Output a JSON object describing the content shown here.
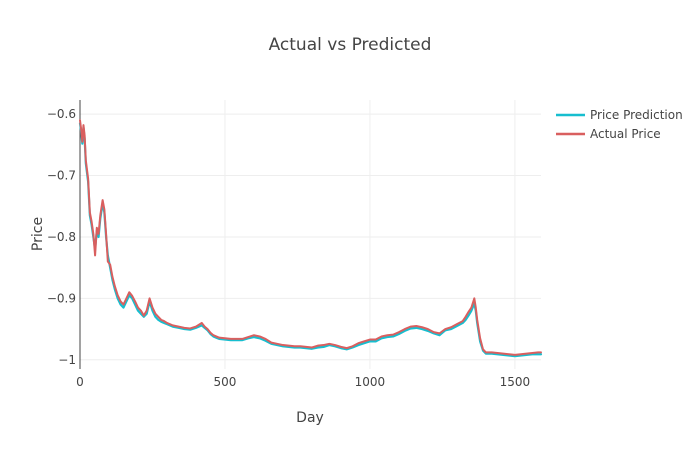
{
  "chart_data": {
    "type": "line",
    "title": "Actual vs Predicted",
    "xlabel": "Day",
    "ylabel": "Price",
    "xlim": [
      0,
      1590
    ],
    "ylim": [
      -1.015,
      -0.577
    ],
    "x_ticks": [
      0,
      500,
      1000,
      1500
    ],
    "y_ticks": [
      -1,
      -0.9,
      -0.8,
      -0.7,
      -0.6
    ],
    "x_tick_labels": [
      "0",
      "500",
      "1000",
      "1500"
    ],
    "y_tick_labels": [
      "−1",
      "−0.9",
      "−0.8",
      "−0.7",
      "−0.6"
    ],
    "grid": true,
    "legend": "top-right",
    "colors": {
      "prediction": "#17BECF",
      "actual": "#D95F5F",
      "grid": "#eeeeee",
      "axis": "#444444"
    },
    "series": [
      {
        "name": "Price Prediction",
        "color": "#17BECF",
        "x": [
          0,
          4,
          8,
          12,
          16,
          20,
          28,
          34,
          40,
          46,
          52,
          58,
          64,
          70,
          78,
          84,
          90,
          96,
          104,
          112,
          120,
          130,
          140,
          150,
          160,
          170,
          180,
          190,
          200,
          210,
          220,
          230,
          240,
          250,
          260,
          270,
          280,
          290,
          300,
          320,
          340,
          360,
          380,
          400,
          420,
          430,
          440,
          450,
          460,
          470,
          480,
          500,
          520,
          540,
          560,
          580,
          600,
          620,
          640,
          660,
          680,
          700,
          720,
          740,
          760,
          780,
          800,
          820,
          840,
          860,
          880,
          900,
          920,
          940,
          960,
          980,
          1000,
          1020,
          1040,
          1060,
          1080,
          1100,
          1120,
          1140,
          1160,
          1180,
          1200,
          1220,
          1240,
          1260,
          1280,
          1300,
          1320,
          1330,
          1340,
          1350,
          1360,
          1365,
          1370,
          1380,
          1390,
          1400,
          1420,
          1440,
          1460,
          1480,
          1500,
          1520,
          1540,
          1560,
          1580,
          1590
        ],
        "values": [
          -0.615,
          -0.628,
          -0.648,
          -0.622,
          -0.64,
          -0.68,
          -0.71,
          -0.765,
          -0.78,
          -0.8,
          -0.82,
          -0.79,
          -0.8,
          -0.77,
          -0.745,
          -0.76,
          -0.8,
          -0.83,
          -0.85,
          -0.87,
          -0.885,
          -0.9,
          -0.91,
          -0.915,
          -0.905,
          -0.895,
          -0.9,
          -0.91,
          -0.92,
          -0.925,
          -0.93,
          -0.925,
          -0.905,
          -0.92,
          -0.93,
          -0.935,
          -0.938,
          -0.94,
          -0.942,
          -0.946,
          -0.948,
          -0.95,
          -0.951,
          -0.948,
          -0.944,
          -0.948,
          -0.952,
          -0.958,
          -0.962,
          -0.964,
          -0.966,
          -0.967,
          -0.968,
          -0.968,
          -0.968,
          -0.965,
          -0.963,
          -0.965,
          -0.969,
          -0.974,
          -0.976,
          -0.978,
          -0.979,
          -0.98,
          -0.98,
          -0.981,
          -0.982,
          -0.98,
          -0.979,
          -0.976,
          -0.978,
          -0.981,
          -0.983,
          -0.98,
          -0.976,
          -0.973,
          -0.97,
          -0.97,
          -0.965,
          -0.963,
          -0.962,
          -0.958,
          -0.953,
          -0.949,
          -0.948,
          -0.95,
          -0.953,
          -0.957,
          -0.96,
          -0.952,
          -0.95,
          -0.945,
          -0.94,
          -0.935,
          -0.928,
          -0.92,
          -0.908,
          -0.92,
          -0.94,
          -0.97,
          -0.985,
          -0.99,
          -0.99,
          -0.991,
          -0.992,
          -0.993,
          -0.994,
          -0.993,
          -0.992,
          -0.991,
          -0.991,
          -0.991
        ]
      },
      {
        "name": "Actual Price",
        "color": "#D95F5F",
        "x": [
          0,
          4,
          8,
          12,
          16,
          20,
          28,
          34,
          40,
          46,
          52,
          58,
          64,
          70,
          78,
          84,
          90,
          96,
          104,
          112,
          120,
          130,
          140,
          150,
          160,
          170,
          180,
          190,
          200,
          210,
          220,
          230,
          240,
          250,
          260,
          270,
          280,
          290,
          300,
          320,
          340,
          360,
          380,
          400,
          420,
          430,
          440,
          450,
          460,
          470,
          480,
          500,
          520,
          540,
          560,
          580,
          600,
          620,
          640,
          660,
          680,
          700,
          720,
          740,
          760,
          780,
          800,
          820,
          840,
          860,
          880,
          900,
          920,
          940,
          960,
          980,
          1000,
          1020,
          1040,
          1060,
          1080,
          1100,
          1120,
          1140,
          1160,
          1180,
          1200,
          1220,
          1240,
          1260,
          1280,
          1300,
          1320,
          1330,
          1340,
          1350,
          1360,
          1365,
          1370,
          1380,
          1390,
          1400,
          1420,
          1440,
          1460,
          1480,
          1500,
          1520,
          1540,
          1560,
          1580,
          1590
        ],
        "values": [
          -0.61,
          -0.625,
          -0.645,
          -0.618,
          -0.635,
          -0.675,
          -0.705,
          -0.76,
          -0.775,
          -0.795,
          -0.83,
          -0.785,
          -0.795,
          -0.765,
          -0.74,
          -0.755,
          -0.795,
          -0.84,
          -0.845,
          -0.865,
          -0.88,
          -0.895,
          -0.905,
          -0.91,
          -0.9,
          -0.89,
          -0.896,
          -0.905,
          -0.915,
          -0.92,
          -0.928,
          -0.92,
          -0.9,
          -0.915,
          -0.925,
          -0.93,
          -0.935,
          -0.937,
          -0.94,
          -0.944,
          -0.946,
          -0.948,
          -0.949,
          -0.946,
          -0.94,
          -0.946,
          -0.95,
          -0.956,
          -0.96,
          -0.962,
          -0.964,
          -0.965,
          -0.966,
          -0.966,
          -0.966,
          -0.963,
          -0.96,
          -0.962,
          -0.966,
          -0.972,
          -0.974,
          -0.976,
          -0.977,
          -0.978,
          -0.978,
          -0.979,
          -0.98,
          -0.977,
          -0.976,
          -0.974,
          -0.976,
          -0.979,
          -0.981,
          -0.978,
          -0.973,
          -0.97,
          -0.967,
          -0.967,
          -0.962,
          -0.96,
          -0.959,
          -0.955,
          -0.95,
          -0.946,
          -0.945,
          -0.947,
          -0.95,
          -0.955,
          -0.957,
          -0.95,
          -0.947,
          -0.942,
          -0.937,
          -0.93,
          -0.922,
          -0.915,
          -0.9,
          -0.915,
          -0.935,
          -0.965,
          -0.983,
          -0.988,
          -0.988,
          -0.989,
          -0.99,
          -0.991,
          -0.992,
          -0.991,
          -0.99,
          -0.989,
          -0.988,
          -0.988
        ]
      }
    ]
  }
}
